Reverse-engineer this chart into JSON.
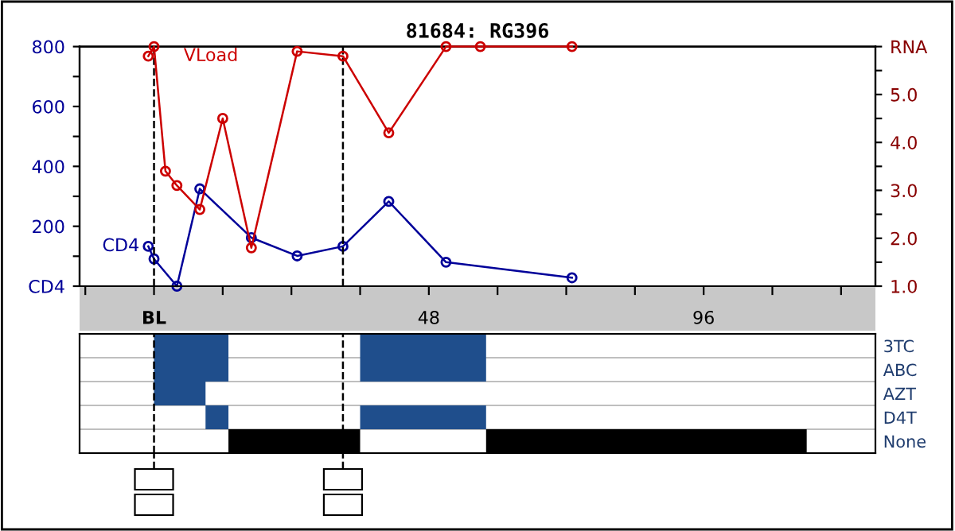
{
  "chart_data": [
    {
      "type": "line",
      "title": "81684: RG396",
      "marker": "circle",
      "legend": false,
      "grid": false,
      "xlim": [
        -13,
        126
      ],
      "xticks": [
        {
          "value": -12,
          "label": null
        },
        {
          "value": 0,
          "label": "BL"
        },
        {
          "value": 12,
          "label": null
        },
        {
          "value": 24,
          "label": null
        },
        {
          "value": 36,
          "label": null
        },
        48,
        {
          "value": 60,
          "label": null
        },
        {
          "value": 72,
          "label": null
        },
        {
          "value": 84,
          "label": null
        },
        96,
        {
          "value": 108,
          "label": null
        },
        {
          "value": 120,
          "label": null
        }
      ],
      "ylim": [
        0,
        800
      ],
      "yticks": [
        {
          "value": 0,
          "label": "CD4"
        },
        {
          "value": 100,
          "label": null
        },
        200,
        {
          "value": 300,
          "label": null
        },
        400,
        {
          "value": 500,
          "label": null
        },
        600,
        {
          "value": 700,
          "label": null
        },
        800
      ],
      "y2lim": [
        1.0,
        6.0
      ],
      "y2ticks": [
        {
          "value": 1.0,
          "label": "1.0"
        },
        {
          "value": 1.5,
          "label": null
        },
        {
          "value": 2.0,
          "label": "2.0"
        },
        {
          "value": 2.5,
          "label": null
        },
        {
          "value": 3.0,
          "label": "3.0"
        },
        {
          "value": 3.5,
          "label": null
        },
        {
          "value": 4.0,
          "label": "4.0"
        },
        {
          "value": 4.5,
          "label": null
        },
        {
          "value": 5.0,
          "label": "5.0"
        },
        {
          "value": 5.5,
          "label": null
        },
        {
          "value": 6.0,
          "label": "RNA"
        }
      ],
      "series": [
        {
          "name": "CD4",
          "color": "#000099",
          "x": [
            -1,
            0,
            4,
            8,
            17,
            25,
            33,
            41,
            51,
            73
          ],
          "values": [
            133,
            91,
            0,
            325,
            162,
            101,
            133,
            283,
            80,
            28
          ]
        },
        {
          "name": "VLoad",
          "color": "#cc0000",
          "axis": "y2",
          "x": [
            -1,
            0,
            2,
            4,
            8,
            12,
            17,
            25,
            33,
            41,
            51,
            57,
            73
          ],
          "values": [
            5.8,
            6.0,
            3.4,
            3.1,
            2.6,
            4.5,
            1.8,
            5.9,
            5.8,
            4.2,
            6.0,
            6.0,
            6.0
          ]
        }
      ],
      "ref_lines": [
        {
          "axis": "x",
          "value": 0,
          "line_style": "dashed",
          "color": "#000000"
        },
        {
          "axis": "x",
          "value": 33,
          "line_style": "dashed",
          "color": "#000000"
        }
      ]
    },
    {
      "type": "bar",
      "orientation": "horizontal",
      "tick_labels": "y",
      "xlim": [
        -13,
        126
      ],
      "categories": [
        "3TC",
        "ABC",
        "AZT",
        "D4T",
        "None"
      ],
      "series": [
        {
          "base": [
            0,
            0,
            0,
            9,
            13
          ],
          "values": [
            13,
            13,
            9,
            4,
            23
          ],
          "colors": [
            "#1f4e8c",
            "#1f4e8c",
            "#1f4e8c",
            "#1f4e8c",
            "#000000"
          ]
        },
        {
          "base": [
            36,
            36,
            null,
            36,
            58
          ],
          "values": [
            22,
            22,
            null,
            22,
            56
          ],
          "colors": [
            "#1f4e8c",
            "#1f4e8c",
            "#1f4e8c",
            "#1f4e8c",
            "#000000"
          ]
        }
      ],
      "ref_lines": [
        {
          "axis": "x",
          "value": 0,
          "line_style": "dashed",
          "color": "#000000"
        },
        {
          "axis": "x",
          "value": 33,
          "line_style": "dashed",
          "color": "#000000"
        }
      ]
    }
  ]
}
